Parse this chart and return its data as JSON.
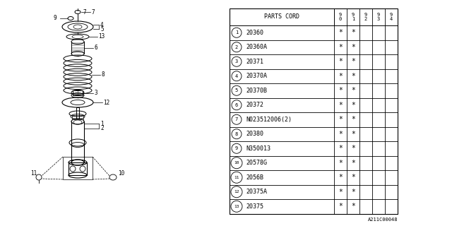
{
  "bg_color": "#ffffff",
  "rows": [
    [
      "1",
      "20360",
      "*",
      "*",
      "",
      ""
    ],
    [
      "2",
      "20360A",
      "*",
      "*",
      "",
      ""
    ],
    [
      "3",
      "20371",
      "*",
      "*",
      "",
      ""
    ],
    [
      "4",
      "20370A",
      "*",
      "*",
      "",
      ""
    ],
    [
      "5",
      "20370B",
      "*",
      "*",
      "",
      ""
    ],
    [
      "6",
      "20372",
      "*",
      "*",
      "",
      ""
    ],
    [
      "7",
      "N023512006(2)",
      "*",
      "*",
      "",
      ""
    ],
    [
      "8",
      "20380",
      "*",
      "*",
      "",
      ""
    ],
    [
      "9",
      "N350013",
      "*",
      "*",
      "",
      ""
    ],
    [
      "10",
      "20578G",
      "*",
      "*",
      "",
      ""
    ],
    [
      "11",
      "2056B",
      "*",
      "*",
      "",
      ""
    ],
    [
      "12",
      "20375A",
      "*",
      "*",
      "",
      ""
    ],
    [
      "13",
      "20375",
      "*",
      "*",
      "",
      ""
    ]
  ],
  "footnote": "A211C00048",
  "years": [
    "9\n0",
    "9\n1",
    "9\n2",
    "9\n3",
    "9\n4"
  ]
}
